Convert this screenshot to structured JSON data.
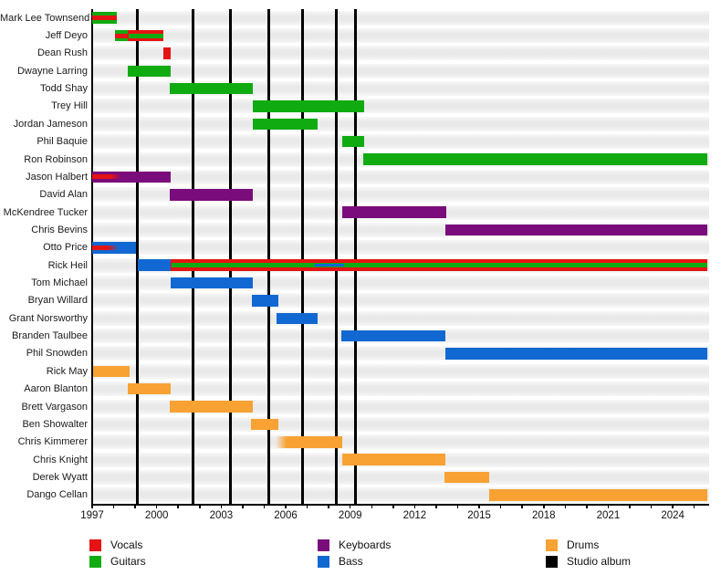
{
  "chart_data": {
    "type": "timeline",
    "title": "",
    "description": "Band members timeline (Gantt-style), instruments color-coded, vertical black lines mark studio album releases",
    "x_axis": {
      "start": 1997,
      "end": 2025.65,
      "tick_interval_years": 1,
      "label_interval_years": 3,
      "tick_labels": [
        "1997",
        "2000",
        "2003",
        "2006",
        "2009",
        "2012",
        "2015",
        "2018",
        "2021",
        "2024"
      ]
    },
    "legend": [
      {
        "role": "vocals",
        "label": "Vocals",
        "color": "#e51313"
      },
      {
        "role": "guitars",
        "label": "Guitars",
        "color": "#10ab10"
      },
      {
        "role": "keyboards",
        "label": "Keyboards",
        "color": "#7b0c7b"
      },
      {
        "role": "bass",
        "label": "Bass",
        "color": "#1168d2"
      },
      {
        "role": "drums",
        "label": "Drums",
        "color": "#f7a233"
      },
      {
        "role": "studio",
        "label": "Studio album",
        "color": "#000000"
      }
    ],
    "album_release_years": [
      1999.1,
      2001.7,
      2003.45,
      2005.22,
      2006.8,
      2008.35,
      2009.25
    ],
    "members": [
      {
        "name": "Mark Lee Townsend",
        "bars": [
          {
            "role": "guitars",
            "start": 1997.0,
            "end": 1998.15,
            "layer": "full"
          },
          {
            "role": "vocals",
            "start": 1997.0,
            "end": 1998.15,
            "layer": "mid"
          }
        ]
      },
      {
        "name": "Jeff Deyo",
        "bars": [
          {
            "role": "guitars",
            "start": 1998.05,
            "end": 1998.65,
            "layer": "full"
          },
          {
            "role": "vocals",
            "start": 1998.05,
            "end": 1998.65,
            "layer": "mid"
          },
          {
            "role": "vocals",
            "start": 1998.65,
            "end": 2000.3,
            "layer": "full"
          },
          {
            "role": "guitars",
            "start": 1998.7,
            "end": 2000.3,
            "layer": "mid"
          }
        ]
      },
      {
        "name": "Dean Rush",
        "bars": [
          {
            "role": "vocals",
            "start": 2000.3,
            "end": 2000.65,
            "layer": "full"
          }
        ]
      },
      {
        "name": "Dwayne Larring",
        "bars": [
          {
            "role": "guitars",
            "start": 1998.65,
            "end": 2000.65,
            "layer": "full"
          }
        ]
      },
      {
        "name": "Todd Shay",
        "bars": [
          {
            "role": "guitars",
            "start": 2000.6,
            "end": 2004.47,
            "layer": "full"
          }
        ]
      },
      {
        "name": "Trey Hill",
        "bars": [
          {
            "role": "guitars",
            "start": 2004.45,
            "end": 2009.65,
            "layer": "full"
          }
        ]
      },
      {
        "name": "Jordan Jameson",
        "bars": [
          {
            "role": "guitars",
            "start": 2004.45,
            "end": 2007.48,
            "layer": "full"
          }
        ]
      },
      {
        "name": "Phil Baquie",
        "bars": [
          {
            "role": "guitars",
            "start": 2008.63,
            "end": 2009.65,
            "layer": "full"
          }
        ]
      },
      {
        "name": "Ron Robinson",
        "bars": [
          {
            "role": "guitars",
            "start": 2009.6,
            "end": 2025.6,
            "layer": "full"
          }
        ]
      },
      {
        "name": "Jason Halbert",
        "bars": [
          {
            "role": "keyboards",
            "start": 1997.0,
            "end": 2000.65,
            "layer": "full"
          },
          {
            "role": "vocals",
            "start": 1997.0,
            "end": 1998.35,
            "layer": "mid",
            "fade": "right"
          }
        ]
      },
      {
        "name": "David Alan",
        "bars": [
          {
            "role": "keyboards",
            "start": 2000.6,
            "end": 2004.47,
            "layer": "full"
          }
        ]
      },
      {
        "name": "McKendree Tucker",
        "bars": [
          {
            "role": "keyboards",
            "start": 2008.63,
            "end": 2013.47,
            "layer": "full"
          }
        ]
      },
      {
        "name": "Chris Bevins",
        "bars": [
          {
            "role": "keyboards",
            "start": 2013.43,
            "end": 2025.6,
            "layer": "full"
          }
        ]
      },
      {
        "name": "Otto Price",
        "bars": [
          {
            "role": "bass",
            "start": 1997.0,
            "end": 1999.03,
            "layer": "full"
          },
          {
            "role": "vocals",
            "start": 1997.0,
            "end": 1998.25,
            "layer": "mid",
            "fade": "right"
          }
        ]
      },
      {
        "name": "Rick Heil",
        "bars": [
          {
            "role": "bass",
            "start": 1999.12,
            "end": 2000.65,
            "layer": "full"
          },
          {
            "role": "vocals",
            "start": 2000.65,
            "end": 2025.6,
            "layer": "full"
          },
          {
            "role": "guitars",
            "start": 2000.7,
            "end": 2025.6,
            "layer": "mid"
          },
          {
            "role": "bass",
            "start": 2007.36,
            "end": 2008.71,
            "layer": "thin"
          }
        ]
      },
      {
        "name": "Tom Michael",
        "bars": [
          {
            "role": "bass",
            "start": 2000.65,
            "end": 2004.47,
            "layer": "full"
          }
        ]
      },
      {
        "name": "Bryan Willard",
        "bars": [
          {
            "role": "bass",
            "start": 2004.43,
            "end": 2005.66,
            "layer": "full"
          }
        ]
      },
      {
        "name": "Grant Norsworthy",
        "bars": [
          {
            "role": "bass",
            "start": 2005.57,
            "end": 2007.48,
            "layer": "full"
          }
        ]
      },
      {
        "name": "Branden Taulbee",
        "bars": [
          {
            "role": "bass",
            "start": 2008.6,
            "end": 2013.43,
            "layer": "full"
          }
        ]
      },
      {
        "name": "Phil Snowden",
        "bars": [
          {
            "role": "bass",
            "start": 2013.43,
            "end": 2025.6,
            "layer": "full"
          }
        ]
      },
      {
        "name": "Rick May",
        "bars": [
          {
            "role": "drums",
            "start": 1997.05,
            "end": 1998.74,
            "layer": "full"
          }
        ]
      },
      {
        "name": "Aaron Blanton",
        "bars": [
          {
            "role": "drums",
            "start": 1998.65,
            "end": 2000.65,
            "layer": "full"
          }
        ]
      },
      {
        "name": "Brett Vargason",
        "bars": [
          {
            "role": "drums",
            "start": 2000.6,
            "end": 2004.47,
            "layer": "full"
          }
        ]
      },
      {
        "name": "Ben Showalter",
        "bars": [
          {
            "role": "drums",
            "start": 2004.38,
            "end": 2005.66,
            "layer": "full"
          }
        ]
      },
      {
        "name": "Chris Kimmerer",
        "bars": [
          {
            "role": "drums",
            "start": 2005.53,
            "end": 2008.63,
            "layer": "full",
            "fade": "left"
          }
        ]
      },
      {
        "name": "Chris Knight",
        "bars": [
          {
            "role": "drums",
            "start": 2008.63,
            "end": 2013.43,
            "layer": "full"
          }
        ]
      },
      {
        "name": "Derek Wyatt",
        "bars": [
          {
            "role": "drums",
            "start": 2013.38,
            "end": 2015.46,
            "layer": "full"
          }
        ]
      },
      {
        "name": "Dango Cellan",
        "bars": [
          {
            "role": "drums",
            "start": 2015.46,
            "end": 2025.6,
            "layer": "full"
          }
        ]
      }
    ]
  }
}
